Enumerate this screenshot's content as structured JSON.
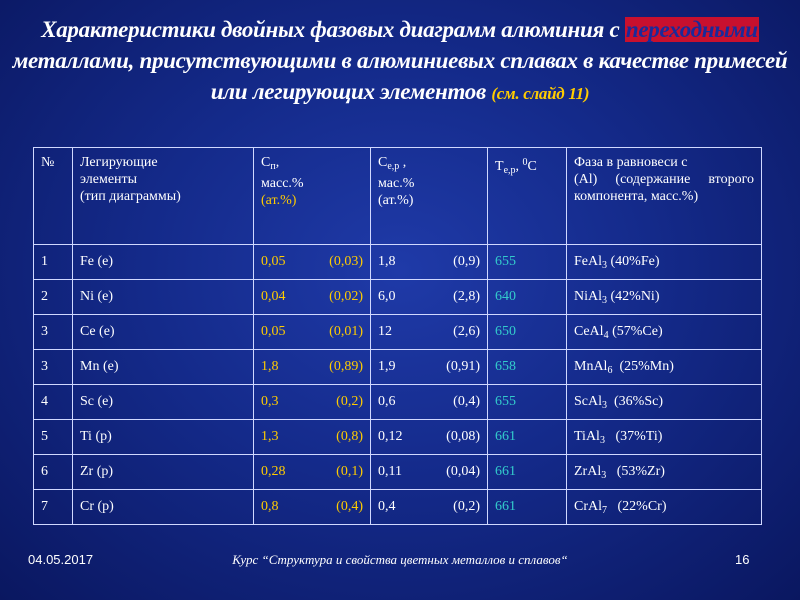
{
  "title": {
    "part1": "Характеристики двойных фазовых диаграмм алюминия с",
    "highlight": "переходными",
    "part2": " металлами, присутствующими  в алюминиевых сплавах в качестве примесей или легирующих элементов ",
    "ref": "(см. слайд 11)"
  },
  "table": {
    "headers": {
      "no": "№",
      "elements_l1": "Легирующие",
      "elements_l2": "элементы",
      "elements_l3": "(тип диаграммы)",
      "cn_main": "С",
      "cn_sub": "п",
      "cn_suffix": ",",
      "cn_l2": "масс.%",
      "cn_l3": "(ат.%)",
      "ce_main": "С",
      "ce_sub": "е,р",
      "ce_suffix": " ,",
      "ce_l2": "мас.%",
      "ce_l3": "(ат.%)",
      "te_main": "Т",
      "te_sub": "е,р",
      "te_mid": ", ",
      "te_sup": "0",
      "te_end": "С",
      "phase_l1": "Фаза в равновеси с",
      "phase_l2": " (Al)        (содержание второго      компонента, масс.%)"
    },
    "rows": [
      {
        "no": "1",
        "element": "Fe (e)",
        "cn_mass": "0,05",
        "cn_at": "(0,03)",
        "ce_mass": "1,8",
        "ce_at": "(0,9)",
        "te": "655",
        "phase_base": "FeAl",
        "phase_sub": "3",
        "phase_content": " (40%Fe)"
      },
      {
        "no": "2",
        "element": "Ni (e)",
        "cn_mass": "0,04",
        "cn_at": "(0,02)",
        "ce_mass": "6,0",
        "ce_at": "(2,8)",
        "te": "640",
        "phase_base": "NiAl",
        "phase_sub": "3",
        "phase_content": " (42%Ni)"
      },
      {
        "no": "3",
        "element": "Ce (e)",
        "cn_mass": "0,05",
        "cn_at": "(0,01)",
        "ce_mass": "12",
        "ce_at": "(2,6)",
        "te": "650",
        "phase_base": "CeAl",
        "phase_sub": "4",
        "phase_content": " (57%Ce)"
      },
      {
        "no": "3",
        "element": "Mn (e)",
        "cn_mass": "1,8",
        "cn_at": "(0,89)",
        "ce_mass": "1,9",
        "ce_at": "(0,91)",
        "te": "658",
        "phase_base": "MnAl",
        "phase_sub": "6",
        "phase_content": "  (25%Mn)"
      },
      {
        "no": "4",
        "element": "Sc (e)",
        "cn_mass": "0,3",
        "cn_at": "(0,2)",
        "ce_mass": "0,6",
        "ce_at": "(0,4)",
        "te": "655",
        "phase_base": "ScAl",
        "phase_sub": "3",
        "phase_content": "  (36%Sc)"
      },
      {
        "no": "5",
        "element": "Ti (p)",
        "cn_mass": "1,3",
        "cn_at": "(0,8)",
        "ce_mass": "0,12",
        "ce_at": "(0,08)",
        "te": "661",
        "phase_base": "TiAl",
        "phase_sub": "3",
        "phase_content": "   (37%Ti)"
      },
      {
        "no": "6",
        "element": "Zr (p)",
        "cn_mass": "0,28",
        "cn_at": "(0,1)",
        "ce_mass": "0,11",
        "ce_at": "(0,04)",
        "te": "661",
        "phase_base": "ZrAl",
        "phase_sub": "3",
        "phase_content": "   (53%Zr)"
      },
      {
        "no": "7",
        "element": "Cr (p)",
        "cn_mass": "0,8",
        "cn_at": "(0,4)",
        "ce_mass": "0,4",
        "ce_at": "(0,2)",
        "te": "661",
        "phase_base": "CrAl",
        "phase_sub": "7",
        "phase_content": "   (22%Cr)"
      }
    ]
  },
  "footer": {
    "date": "04.05.2017",
    "course": "Курс “Структура и свойства цветных металлов и сплавов“",
    "page": "16"
  },
  "colors": {
    "background": "#142a8a",
    "text": "#ffffff",
    "accent_yellow": "#ffcc00",
    "accent_cyan": "#33cccc",
    "highlight_red": "#c8102e"
  }
}
